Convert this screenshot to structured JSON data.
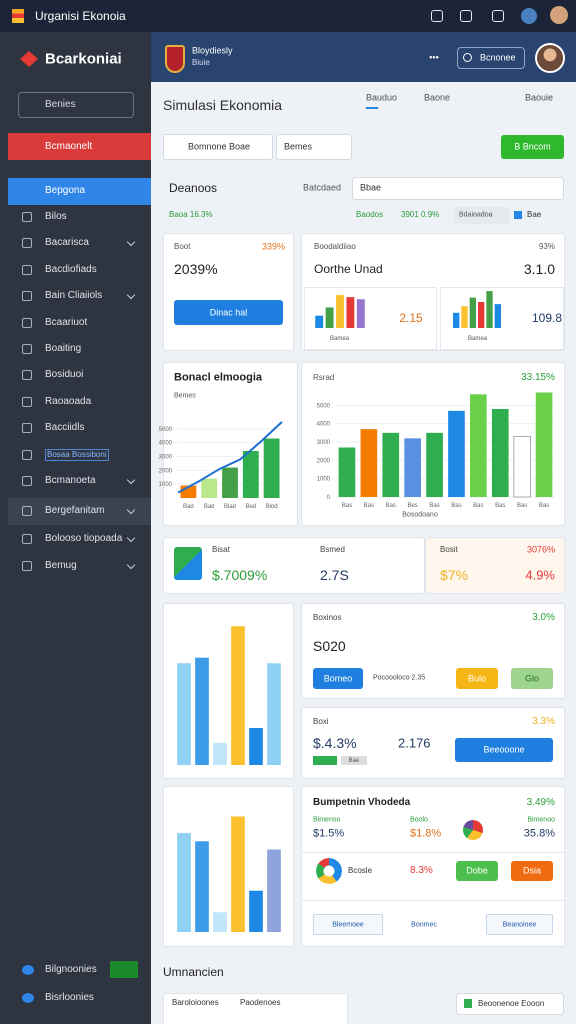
{
  "topbar": {
    "title": "Urganisi Ekonoia"
  },
  "sidebar": {
    "brand": "Bcarkoniai",
    "search": "Benies",
    "alert": "Bcmaonelt",
    "active": "Bepgona",
    "items": [
      "Bilos",
      "Bacarisca",
      "Bacdiofiads",
      "Bain Cliaiiols",
      "Bcaariuot",
      "Boaiting",
      "Bosiduoi",
      "Raoaoada",
      "Bacciidls",
      "Bosaa Bossiboni",
      "Bcmanoeta",
      "Bergefanitam",
      "Bolooso tiopoada",
      "Bemug"
    ],
    "footer": [
      "Bilgnoonies",
      "Bisrloonies"
    ]
  },
  "header": {
    "org": "Bloydiesly",
    "sub": "Biuie",
    "menu": "•••",
    "button": "Bcnonee"
  },
  "page": {
    "title": "Simulasi Ekonomia",
    "tabs": [
      "Bauduo",
      "Baone",
      "Baouie"
    ]
  },
  "filters": {
    "select1": "Bomnone Boae",
    "select2": "Bemes",
    "button": "B Bncom"
  },
  "section": {
    "title": "Deanoos",
    "label": "Batcdaed",
    "select": "Bbae",
    "stat": "Baoa 16.3%",
    "stat2_label": "Baodos",
    "stat2": "3901 0.9%",
    "select2": "Bdaioadoa",
    "legend": "Bae"
  },
  "cards": {
    "a": {
      "label": "Boot",
      "change": "339%",
      "value": "2039%",
      "button": "Dinac hal"
    },
    "b": {
      "label": "Boodaldiiao",
      "change": "93%",
      "title": "Oorthe Unad",
      "value": "3.1.0"
    },
    "c": {
      "title": "Bonacl elmoogia",
      "sub": "Bemes"
    },
    "d": {
      "title": "Rsrad",
      "change": "33.15%",
      "caption": "Bosodoano"
    },
    "e": {
      "label1": "Bisat",
      "value1": "$.7009%",
      "label2": "Bsmed",
      "value2": "2.7S",
      "label3": "Bosit",
      "change3": "3076%",
      "value3": "$7%",
      "value4": "4.9%"
    },
    "g": {
      "label": "Boxinos",
      "change": "3.0%",
      "value": "S020",
      "button1": "Bomeo",
      "note": "Pocoooloco 2.35",
      "button2": "Bulo",
      "button3": "Glo"
    },
    "h": {
      "label": "Boxi",
      "change": "3.3%",
      "value1": "$.4.3%",
      "value2": "2.176",
      "button": "Beeooone",
      "tag": "Bae"
    },
    "j": {
      "title": "Bumpetnin Vhodeda",
      "change": "3.49%",
      "cols": [
        {
          "label": "Bimenso",
          "value": "$1.5%"
        },
        {
          "label": "Boolo",
          "value": "$1.8%"
        },
        {
          "label": "Bimenoo",
          "value": "35.8%"
        }
      ],
      "name": "Bcosle",
      "value": "8.3%",
      "button1": "Dobe",
      "button2": "Dsia",
      "tags": [
        "Bleemoee",
        "Bonmec",
        "Beanoinee"
      ]
    }
  },
  "bottom": {
    "title": "Umnancien",
    "cols": [
      "Baroloioones",
      "Paodenoes"
    ],
    "button": "Beoonenoe Eooon"
  },
  "charts": [
    {
      "type": "bar",
      "values": [
        12,
        20,
        32,
        30,
        28
      ],
      "colors": [
        "#1e88e5",
        "#43a047",
        "#fbc02d",
        "#e53935",
        "#9575cd"
      ],
      "ylim": [
        0,
        35
      ],
      "label": "2.15",
      "caption": "Bamea"
    },
    {
      "type": "bar",
      "values": [
        14,
        20,
        28,
        24,
        34,
        22
      ],
      "colors": [
        "#1e88e5",
        "#fbc02d",
        "#43a047",
        "#e53935",
        "#43a047",
        "#1e88e5"
      ],
      "ylim": [
        0,
        35
      ],
      "label": "109.8",
      "caption": "Bamea"
    },
    {
      "type": "bar",
      "values": [
        900,
        1400,
        2200,
        3400,
        4300
      ],
      "colors": [
        "#f57c00",
        "#b9e88a",
        "#43a047",
        "#2eae4e",
        "#2eae4e"
      ],
      "line": [
        400,
        1200,
        2100,
        2800,
        4100,
        5500
      ],
      "ylim": [
        0,
        6000
      ],
      "yticks": [
        1000,
        2000,
        3000,
        4000,
        5000
      ],
      "categories": [
        "Bad",
        "Bad",
        "Blad",
        "Bed",
        "Blod"
      ]
    },
    {
      "type": "bar",
      "values": [
        2700,
        3700,
        3500,
        3200,
        3500,
        4700,
        5600,
        4800,
        3300,
        5700
      ],
      "colors": [
        "#2eae4e",
        "#f57c00",
        "#2eae4e",
        "#5b8fe0",
        "#2eae4e",
        "#1e88e5",
        "#6ad04a",
        "#2eae4e",
        "#ffffff",
        "#6ad04a"
      ],
      "ylim": [
        0,
        6000
      ],
      "yticks": [
        0,
        1000,
        2000,
        3000,
        4000,
        5000
      ],
      "categories": [
        "Bas",
        "Bas",
        "Bas",
        "Bes",
        "Bas",
        "Bas",
        "Bas",
        "Bas",
        "Bas",
        "Bas"
      ]
    },
    {
      "type": "bar",
      "values": [
        55,
        58,
        12,
        75,
        20,
        55
      ],
      "colors": [
        "#8fd0f5",
        "#3d9ce8",
        "#bfe6fb",
        "#fbc02d",
        "#1e88e5",
        "#8fd0f5"
      ],
      "ylim": [
        0,
        80
      ]
    },
    {
      "type": "bar",
      "values": [
        60,
        55,
        12,
        70,
        25,
        50
      ],
      "colors": [
        "#8fd0f5",
        "#3d9ce8",
        "#bfe6fb",
        "#fbc02d",
        "#1e88e5",
        "#8ea3dc"
      ],
      "ylim": [
        0,
        80
      ]
    }
  ]
}
